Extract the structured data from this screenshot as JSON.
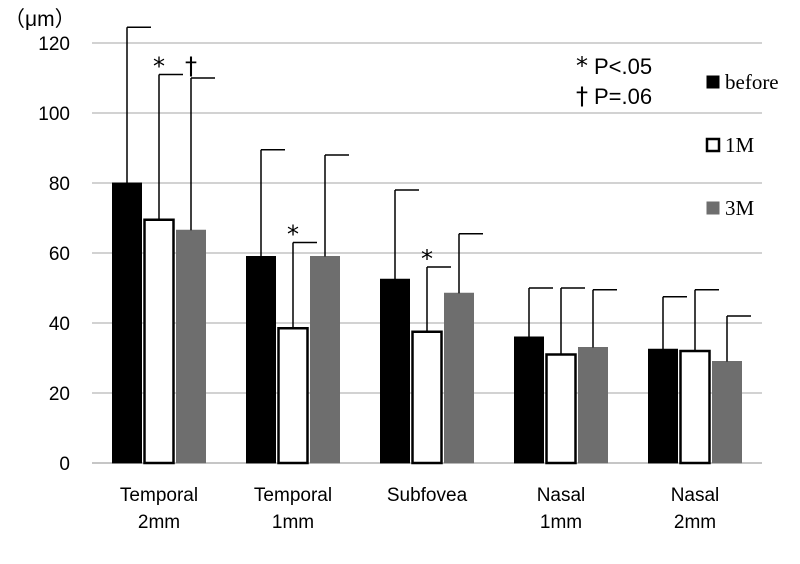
{
  "chart_data": {
    "type": "bar",
    "ylabel": "（μm）",
    "ylim": [
      0,
      120
    ],
    "yticks": [
      0,
      20,
      40,
      60,
      80,
      100,
      120
    ],
    "grid": true,
    "legend_position": "right",
    "categories": [
      [
        "Temporal",
        "2mm"
      ],
      [
        "Temporal",
        "1mm"
      ],
      [
        "Subfovea"
      ],
      [
        "Nasal",
        "1mm"
      ],
      [
        "Nasal",
        "2mm"
      ]
    ],
    "series": [
      {
        "name": "before",
        "color": "#000000",
        "values": [
          80,
          59,
          52.5,
          36,
          32.5
        ],
        "error": [
          44.5,
          30.5,
          25.5,
          14,
          15
        ]
      },
      {
        "name": "1M",
        "color": "#ffffff",
        "values": [
          69.5,
          38.5,
          37.5,
          31,
          32
        ],
        "error": [
          41.5,
          24.5,
          18.5,
          19,
          17.5
        ]
      },
      {
        "name": "3M",
        "color": "#6e6e6e",
        "values": [
          66.5,
          59,
          48.5,
          33,
          29
        ],
        "error": [
          43.5,
          29,
          17,
          16.5,
          13
        ]
      }
    ],
    "significance": [
      {
        "category": 0,
        "series": 1,
        "symbol": "*"
      },
      {
        "category": 0,
        "series": 2,
        "symbol": "†"
      },
      {
        "category": 1,
        "series": 1,
        "symbol": "*"
      },
      {
        "category": 2,
        "series": 1,
        "symbol": "*"
      }
    ],
    "annotations": [
      {
        "symbol": "*",
        "text": "P<.05"
      },
      {
        "symbol": "†",
        "text": "P=.06"
      }
    ]
  }
}
